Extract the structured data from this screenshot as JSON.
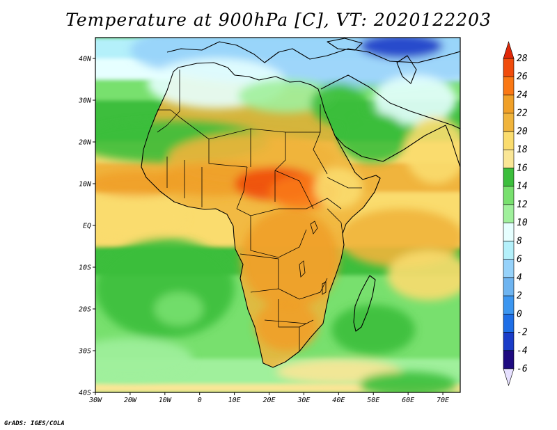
{
  "title": "Temperature at 900hPa [C], VT: 2020122203",
  "credit": "GrADS: IGES/COLA",
  "map": {
    "projection": "lat-lon",
    "lon_range": [
      -30,
      75
    ],
    "lat_range": [
      -40,
      45
    ],
    "lon_ticks": [
      {
        "lon": -30,
        "label": "30W"
      },
      {
        "lon": -20,
        "label": "20W"
      },
      {
        "lon": -10,
        "label": "10W"
      },
      {
        "lon": 0,
        "label": "0"
      },
      {
        "lon": 10,
        "label": "10E"
      },
      {
        "lon": 20,
        "label": "20E"
      },
      {
        "lon": 30,
        "label": "30E"
      },
      {
        "lon": 40,
        "label": "40E"
      },
      {
        "lon": 50,
        "label": "50E"
      },
      {
        "lon": 60,
        "label": "60E"
      },
      {
        "lon": 70,
        "label": "70E"
      }
    ],
    "lat_ticks": [
      {
        "lat": 40,
        "label": "40N"
      },
      {
        "lat": 30,
        "label": "30N"
      },
      {
        "lat": 20,
        "label": "20N"
      },
      {
        "lat": 10,
        "label": "10N"
      },
      {
        "lat": 0,
        "label": "EQ"
      },
      {
        "lat": -10,
        "label": "10S"
      },
      {
        "lat": -20,
        "label": "20S"
      },
      {
        "lat": -30,
        "label": "30S"
      },
      {
        "lat": -40,
        "label": "40S"
      }
    ]
  },
  "colorbar": {
    "levels": [
      -6,
      -4,
      -2,
      0,
      2,
      4,
      6,
      8,
      10,
      12,
      14,
      16,
      18,
      20,
      22,
      24,
      26,
      28
    ],
    "labels": [
      "-6",
      "-4",
      "-2",
      "0",
      "2",
      "4",
      "6",
      "8",
      "10",
      "12",
      "14",
      "16",
      "18",
      "20",
      "22",
      "24",
      "26",
      "28"
    ],
    "colors": [
      "#1e0a80",
      "#1a3cc8",
      "#1e6ee6",
      "#3c96f0",
      "#6eb4f0",
      "#96d2fa",
      "#b4f0fa",
      "#e6ffff",
      "#a0f09c",
      "#78e06e",
      "#3cbe3c",
      "#fae696",
      "#fadc6e",
      "#f0b43c",
      "#f0a028",
      "#fa7814",
      "#f04c0c"
    ],
    "under_color": "#e6e0ff",
    "over_color": "#e02808"
  },
  "field_blobs": [
    {
      "lon": 40,
      "lat": 42,
      "rx": 60,
      "ry": 9,
      "value": 4
    },
    {
      "lon": 58,
      "lat": 43,
      "rx": 12,
      "ry": 3,
      "value": -4
    },
    {
      "lon": 5,
      "lat": 34,
      "rx": 20,
      "ry": 6,
      "value": 9
    },
    {
      "lon": 25,
      "lat": 31,
      "rx": 14,
      "ry": 4,
      "value": 10
    },
    {
      "lon": 40,
      "lat": 29,
      "rx": 8,
      "ry": 5,
      "value": 15
    },
    {
      "lon": 62,
      "lat": 30,
      "rx": 12,
      "ry": 6,
      "value": 8
    },
    {
      "lon": -8,
      "lat": 20,
      "rx": 28,
      "ry": 5,
      "value": 14
    },
    {
      "lon": 50,
      "lat": 21,
      "rx": 10,
      "ry": 6,
      "value": 15
    },
    {
      "lon": 68,
      "lat": 18,
      "rx": 9,
      "ry": 8,
      "value": 19
    },
    {
      "lon": 15,
      "lat": 16,
      "rx": 24,
      "ry": 6,
      "value": 21
    },
    {
      "lon": 5,
      "lat": 11,
      "rx": 18,
      "ry": 4,
      "value": 23
    },
    {
      "lon": 22,
      "lat": 10,
      "rx": 12,
      "ry": 4,
      "value": 26
    },
    {
      "lon": 30,
      "lat": 8,
      "rx": 10,
      "ry": 4,
      "value": 25
    },
    {
      "lon": 40,
      "lat": 9,
      "rx": 7,
      "ry": 5,
      "value": 18
    },
    {
      "lon": -18,
      "lat": 10,
      "rx": 14,
      "ry": 3,
      "value": 22
    },
    {
      "lon": -20,
      "lat": 2,
      "rx": 16,
      "ry": 5,
      "value": 19
    },
    {
      "lon": 26,
      "lat": -8,
      "rx": 14,
      "ry": 12,
      "value": 22
    },
    {
      "lon": 58,
      "lat": -3,
      "rx": 18,
      "ry": 7,
      "value": 20
    },
    {
      "lon": 66,
      "lat": -12,
      "rx": 12,
      "ry": 6,
      "value": 19
    },
    {
      "lon": 25,
      "lat": -24,
      "rx": 9,
      "ry": 6,
      "value": 22
    },
    {
      "lon": -10,
      "lat": -15,
      "rx": 20,
      "ry": 12,
      "value": 14
    },
    {
      "lon": -6,
      "lat": -20,
      "rx": 7,
      "ry": 4,
      "value": 12
    },
    {
      "lon": -20,
      "lat": -32,
      "rx": 18,
      "ry": 5,
      "value": 11
    },
    {
      "lon": 50,
      "lat": -25,
      "rx": 12,
      "ry": 6,
      "value": 15
    },
    {
      "lon": 40,
      "lat": -35,
      "rx": 18,
      "ry": 3,
      "value": 17
    },
    {
      "lon": 60,
      "lat": -38,
      "rx": 14,
      "ry": 3,
      "value": 14
    }
  ]
}
